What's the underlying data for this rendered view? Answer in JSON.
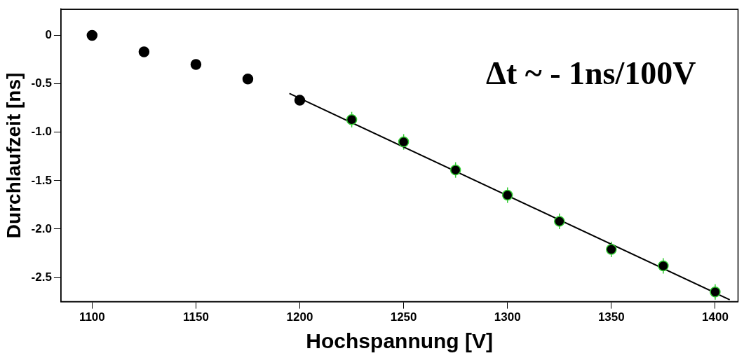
{
  "chart_data": {
    "type": "scatter",
    "xlabel": "Hochspannung [V]",
    "ylabel": "Durchlaufzeit [ns]",
    "annotations": [
      "Δt ~ - 1ns/100V"
    ],
    "x": [
      1100,
      1125,
      1150,
      1175,
      1200,
      1225,
      1250,
      1275,
      1300,
      1325,
      1350,
      1375,
      1400
    ],
    "series": [
      {
        "color": "#000000",
        "marker": "circle",
        "values": [
          0.0,
          -0.17,
          -0.3,
          -0.45,
          -0.67,
          -0.87,
          -1.1,
          -1.39,
          -1.65,
          -1.92,
          -2.21,
          -2.38,
          -2.65
        ],
        "errors": [
          null,
          null,
          null,
          null,
          null,
          0.08,
          0.08,
          0.08,
          0.08,
          0.08,
          0.08,
          0.08,
          0.08
        ]
      },
      {
        "type": "line",
        "marker": "none",
        "color": "#000000",
        "x": [
          1195,
          1407
        ],
        "values": [
          -0.6,
          -2.73
        ]
      }
    ],
    "xlim": [
      1085,
      1411
    ],
    "xticks": [
      1100,
      1150,
      1200,
      1250,
      1300,
      1350,
      1400
    ],
    "ylim": [
      -2.75,
      0.27
    ],
    "yticks": [
      0,
      {
        "value": -0.5,
        "label": "-0.5"
      },
      {
        "value": -1,
        "label": "-1.0"
      },
      {
        "value": -1.5,
        "label": "-1.5"
      },
      {
        "value": -2,
        "label": "-2.0"
      },
      {
        "value": -2.5,
        "label": "-2.5"
      }
    ],
    "grid": false,
    "legend": false
  }
}
